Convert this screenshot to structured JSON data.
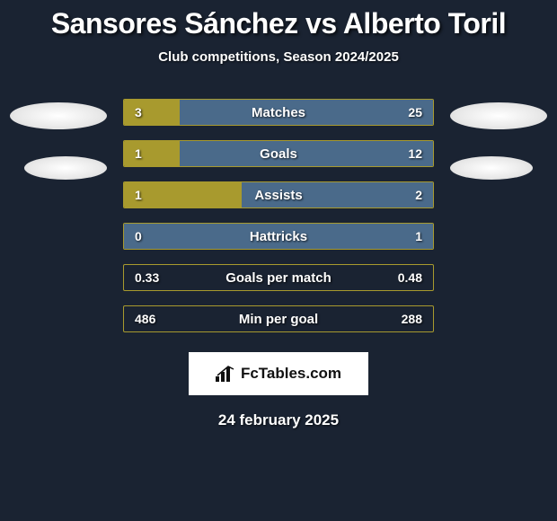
{
  "title": "Sansores Sánchez vs Alberto Toril",
  "subtitle": "Club competitions, Season 2024/2025",
  "colors": {
    "left": "#a89a2e",
    "right": "#4a6a8a",
    "background": "#1a2332"
  },
  "rows": [
    {
      "label": "Matches",
      "left_val": "3",
      "right_val": "25",
      "left_pct": 18,
      "right_pct": 82
    },
    {
      "label": "Goals",
      "left_val": "1",
      "right_val": "12",
      "left_pct": 18,
      "right_pct": 82
    },
    {
      "label": "Assists",
      "left_val": "1",
      "right_val": "2",
      "left_pct": 38,
      "right_pct": 62
    },
    {
      "label": "Hattricks",
      "left_val": "0",
      "right_val": "1",
      "left_pct": 0,
      "right_pct": 100
    },
    {
      "label": "Goals per match",
      "left_val": "0.33",
      "right_val": "0.48",
      "left_pct": 0,
      "right_pct": 0
    },
    {
      "label": "Min per goal",
      "left_val": "486",
      "right_val": "288",
      "left_pct": 0,
      "right_pct": 0
    }
  ],
  "logo_text": "FcTables.com",
  "date": "24 february 2025"
}
